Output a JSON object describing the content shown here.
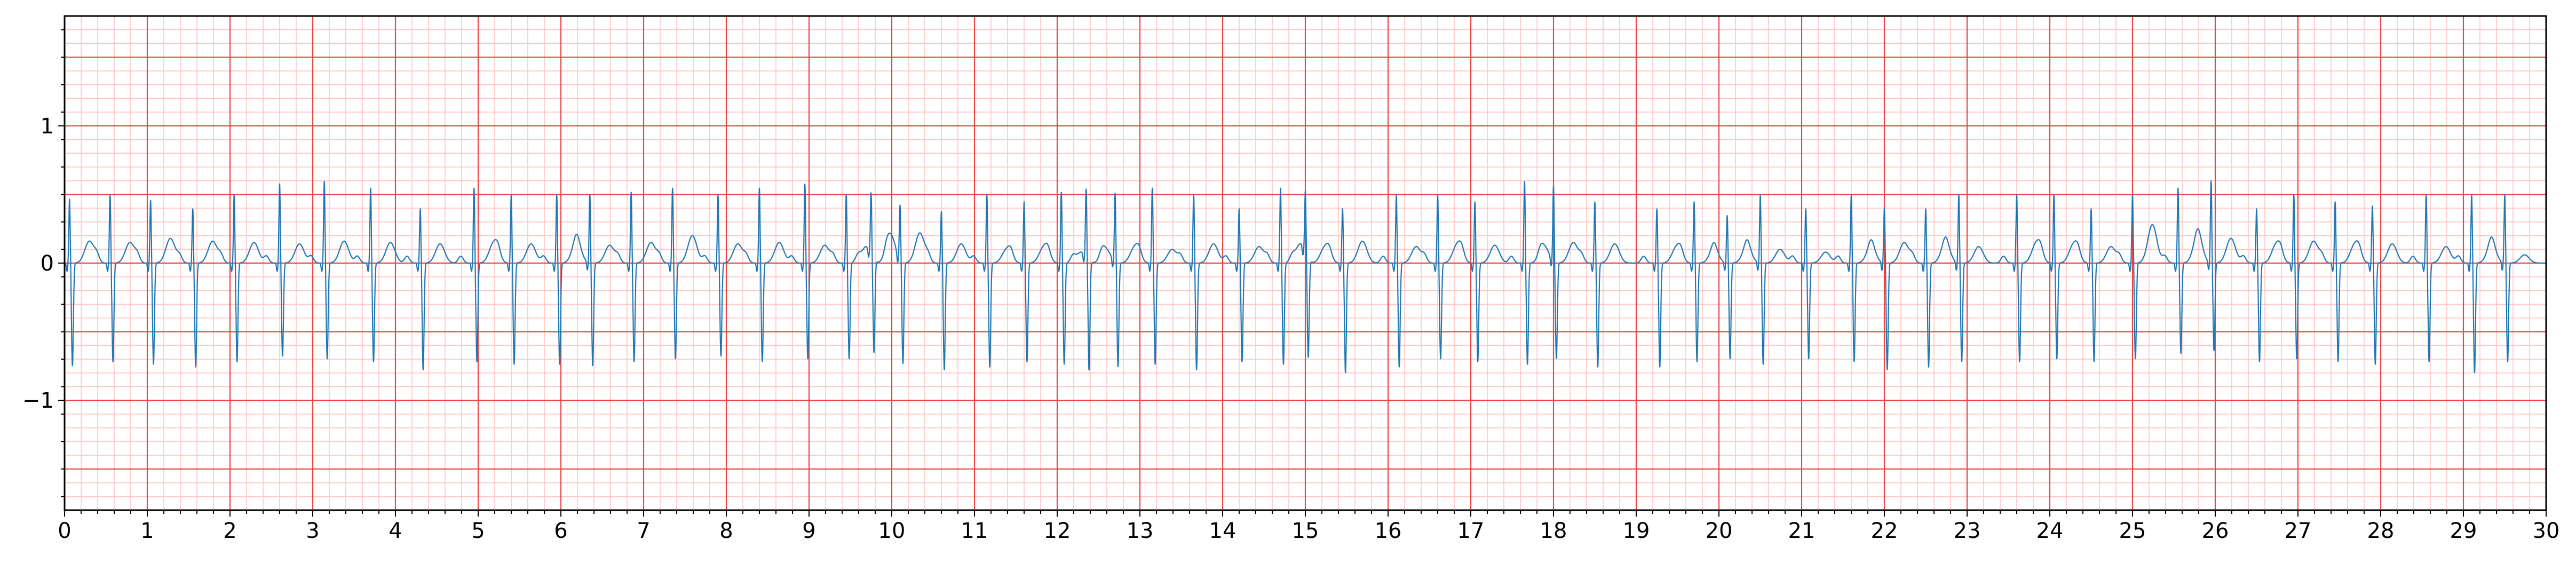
{
  "chart_data": {
    "type": "line",
    "title": "",
    "xlabel": "",
    "ylabel": "",
    "xlim": [
      0,
      30
    ],
    "ylim": [
      -1.8,
      1.8
    ],
    "x_ticks": [
      0,
      1,
      2,
      3,
      4,
      5,
      6,
      7,
      8,
      9,
      10,
      11,
      12,
      13,
      14,
      15,
      16,
      17,
      18,
      19,
      20,
      21,
      22,
      23,
      24,
      25,
      26,
      27,
      28,
      29,
      30
    ],
    "y_ticks": [
      -1,
      0,
      1
    ],
    "y_tick_labels": [
      "−1",
      "0",
      "1"
    ],
    "grid": {
      "major_x_step": 1,
      "minor_x_step": 0.2,
      "major_y_step": 0.5,
      "minor_y_step": 0.1,
      "major_color": "#ee4444",
      "minor_color": "#ffc4c4"
    },
    "line_color": "#1f77b4",
    "series": [
      {
        "sample_rate_hz": 20,
        "beat_times": [
          0.06,
          0.55,
          1.04,
          1.55,
          2.05,
          2.6,
          3.14,
          3.7,
          4.3,
          4.95,
          5.4,
          5.95,
          6.35,
          6.85,
          7.35,
          7.9,
          8.4,
          8.95,
          9.45,
          9.75,
          10.1,
          10.6,
          11.15,
          11.6,
          12.05,
          12.35,
          12.7,
          13.15,
          13.65,
          14.2,
          14.7,
          15.0,
          15.45,
          16.1,
          16.6,
          17.05,
          17.65,
          18.0,
          18.5,
          19.25,
          19.7,
          20.1,
          20.5,
          21.05,
          21.6,
          22.0,
          22.5,
          22.9,
          23.6,
          24.05,
          24.5,
          25.0,
          25.55,
          25.95,
          26.5,
          26.95,
          27.45,
          27.9,
          28.55,
          29.1,
          29.5
        ],
        "r_amplitudes": [
          0.47,
          0.5,
          0.46,
          0.4,
          0.5,
          0.58,
          0.6,
          0.55,
          0.4,
          0.55,
          0.5,
          0.5,
          0.5,
          0.52,
          0.55,
          0.5,
          0.55,
          0.58,
          0.5,
          0.45,
          0.4,
          0.38,
          0.5,
          0.45,
          0.52,
          0.5,
          0.5,
          0.55,
          0.5,
          0.4,
          0.55,
          0.45,
          0.4,
          0.5,
          0.5,
          0.45,
          0.6,
          0.55,
          0.45,
          0.4,
          0.45,
          0.35,
          0.5,
          0.4,
          0.5,
          0.4,
          0.4,
          0.5,
          0.5,
          0.5,
          0.4,
          0.5,
          0.55,
          0.6,
          0.4,
          0.5,
          0.45,
          0.42,
          0.5,
          0.5,
          0.5
        ],
        "s_amplitudes": [
          -0.75,
          -0.72,
          -0.74,
          -0.76,
          -0.72,
          -0.68,
          -0.7,
          -0.72,
          -0.78,
          -0.72,
          -0.74,
          -0.74,
          -0.75,
          -0.72,
          -0.7,
          -0.68,
          -0.72,
          -0.7,
          -0.7,
          -0.68,
          -0.74,
          -0.78,
          -0.76,
          -0.72,
          -0.74,
          -0.8,
          -0.76,
          -0.74,
          -0.78,
          -0.72,
          -0.74,
          -0.72,
          -0.8,
          -0.76,
          -0.7,
          -0.72,
          -0.74,
          -0.7,
          -0.76,
          -0.76,
          -0.72,
          -0.7,
          -0.74,
          -0.7,
          -0.72,
          -0.78,
          -0.76,
          -0.72,
          -0.72,
          -0.7,
          -0.72,
          -0.7,
          -0.66,
          -0.64,
          -0.72,
          -0.7,
          -0.72,
          -0.74,
          -0.72,
          -0.8,
          -0.72
        ],
        "t_amplitudes": [
          0.16,
          0.15,
          0.18,
          0.16,
          0.15,
          0.14,
          0.16,
          0.15,
          0.14,
          0.15,
          0.14,
          0.16,
          0.13,
          0.15,
          0.2,
          0.14,
          0.15,
          0.13,
          0.12,
          0.2,
          0.22,
          0.14,
          0.1,
          0.12,
          0.08,
          0.1,
          0.12,
          0.1,
          0.14,
          0.12,
          0.14,
          0.12,
          0.16,
          0.12,
          0.14,
          0.13,
          0.12,
          0.15,
          0.14,
          0.12,
          0.1,
          0.12,
          0.1,
          0.08,
          0.12,
          0.15,
          0.14,
          0.12,
          0.15,
          0.14,
          0.12,
          0.28,
          0.2,
          0.18,
          0.14,
          0.16,
          0.14,
          0.14,
          0.12,
          0.14,
          0.06
        ]
      }
    ]
  }
}
